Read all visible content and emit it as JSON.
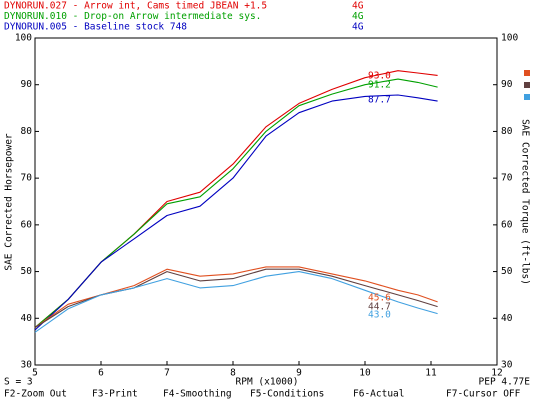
{
  "chart_data": {
    "type": "line",
    "xlabel": "RPM (x1000)",
    "ylabel": "SAE Corrected Horsepower",
    "y2label": "SAE Corrected Torque (ft-lbs)",
    "status": "S = 3",
    "version": "PEP 4.77E",
    "menu": [
      "F2-Zoom Out",
      "F3-Print",
      "F4-Smoothing",
      "F5-Conditions",
      "F6-Actual",
      "F7-Cursor OFF"
    ],
    "xlim": [
      5,
      12
    ],
    "xticks": [
      5,
      6,
      7,
      8,
      9,
      10,
      11,
      12
    ],
    "ylim": [
      30,
      100
    ],
    "yticks": [
      30,
      40,
      50,
      60,
      70,
      80,
      90,
      100
    ],
    "y2lim": [
      30,
      100
    ],
    "y2ticks": [
      30,
      40,
      50,
      60,
      70,
      80,
      90,
      100
    ],
    "x": [
      5.0,
      5.5,
      6.0,
      6.5,
      7.0,
      7.5,
      8.0,
      8.5,
      9.0,
      9.5,
      10.0,
      10.5,
      10.8,
      11.1
    ],
    "series": [
      {
        "name": "DYNORUN.027 - Arrow int, Cams timed  JBEAN  +1.5",
        "tag": "4G",
        "color": "#e00000",
        "values": [
          38,
          44,
          52,
          58,
          65,
          67,
          73,
          81,
          86,
          89,
          91.5,
          93,
          92.5,
          92
        ]
      },
      {
        "name": "DYNORUN.010 - Drop-on Arrow intermediate sys.",
        "tag": "4G",
        "color": "#00a000",
        "values": [
          38,
          44,
          52,
          58,
          64.5,
          66,
          72,
          80,
          85.5,
          88,
          90,
          91.2,
          90.5,
          89.5
        ]
      },
      {
        "name": "DYNORUN.005 - Baseline stock 748",
        "tag": "4G",
        "color": "#0000c0",
        "values": [
          37.5,
          44,
          52,
          57,
          62,
          64,
          70,
          79,
          84,
          86.5,
          87.5,
          87.8,
          87.2,
          86.5
        ]
      },
      {
        "axis": "y2",
        "color": "#e05020",
        "values": [
          38,
          43,
          45,
          47,
          50.5,
          49,
          49.5,
          51,
          51,
          49.5,
          48,
          46,
          45,
          43.5
        ]
      },
      {
        "axis": "y2",
        "color": "#604040",
        "values": [
          38,
          42.5,
          45,
          46.5,
          50,
          48,
          48.5,
          50.5,
          50.5,
          49,
          47,
          45,
          43.8,
          42.5
        ]
      },
      {
        "axis": "y2",
        "color": "#40a0e0",
        "values": [
          37,
          42,
          45,
          46.5,
          48.5,
          46.5,
          47,
          49,
          50,
          48.5,
          46,
          43.5,
          42.2,
          41
        ]
      }
    ],
    "annotations": [
      {
        "text": "93.0",
        "color": "#e00000"
      },
      {
        "text": "91.2",
        "color": "#00a000"
      },
      {
        "text": "87.7",
        "color": "#0000c0"
      },
      {
        "text": "45.6",
        "color": "#e05020"
      },
      {
        "text": "44.7",
        "color": "#604040"
      },
      {
        "text": "43.0",
        "color": "#40a0e0"
      }
    ]
  }
}
